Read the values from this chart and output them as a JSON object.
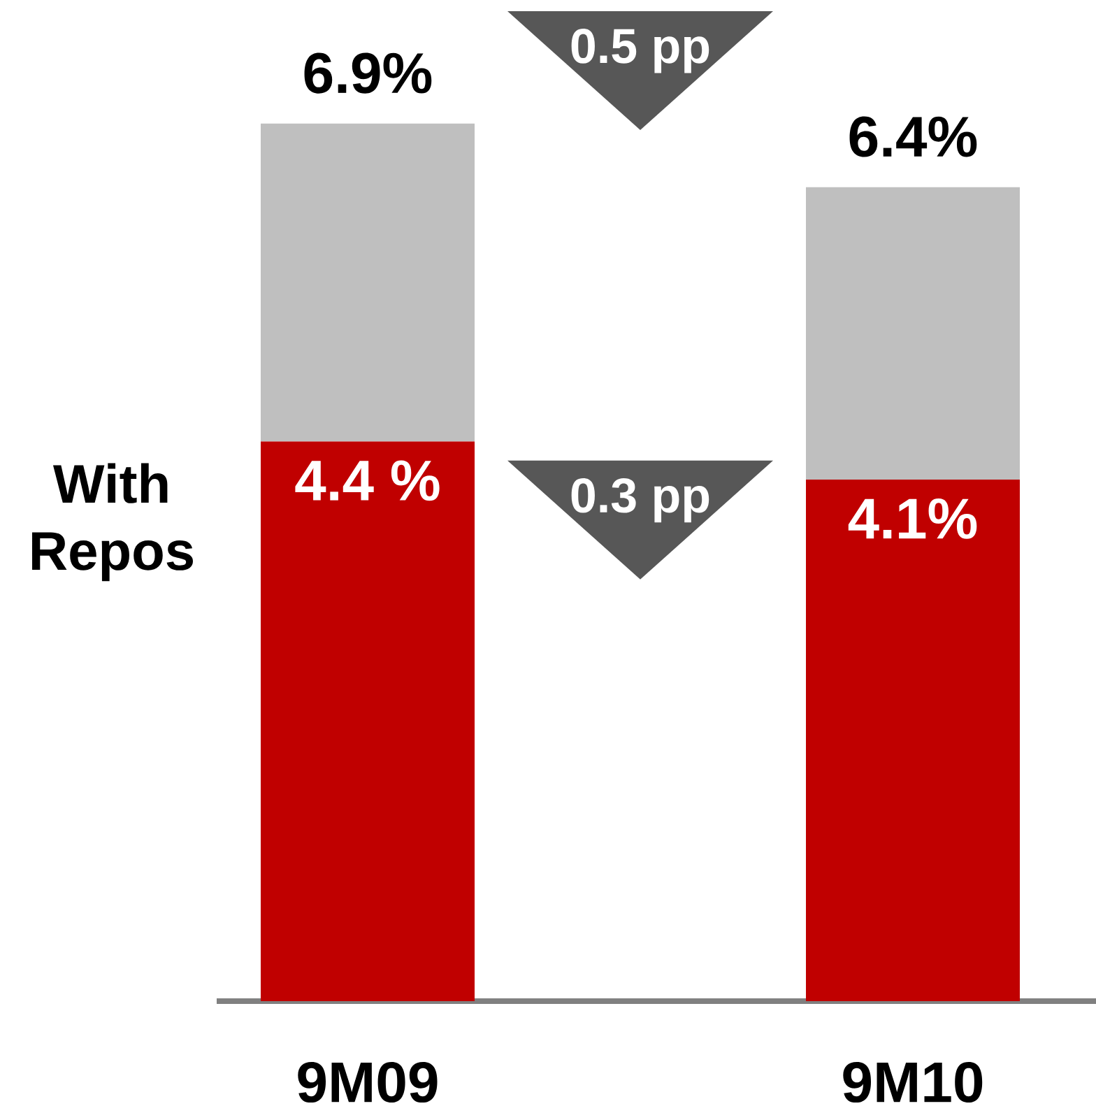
{
  "chart_data": {
    "type": "bar",
    "stacked": true,
    "categories": [
      "9M09",
      "9M10"
    ],
    "series": [
      {
        "name": "With Repos",
        "color": "#c00000",
        "values": [
          4.4,
          4.1
        ],
        "value_labels": [
          "4.4 %",
          "4.1%"
        ]
      },
      {
        "color": "#bfbfbf",
        "values": [
          2.5,
          2.3
        ]
      }
    ],
    "totals": [
      "6.9%",
      "6.4%"
    ],
    "annotations": [
      "0.5 pp",
      "0.3 pp"
    ],
    "tick_labels": "x"
  }
}
